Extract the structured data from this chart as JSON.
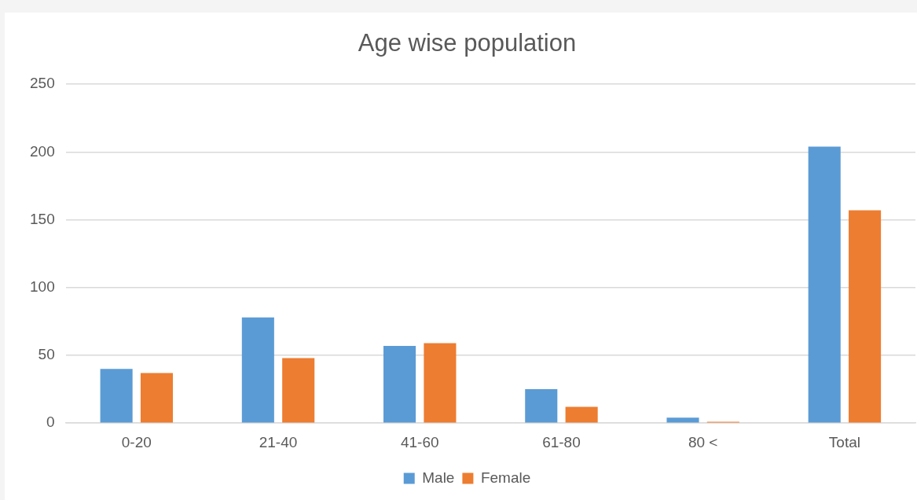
{
  "chart_data": {
    "type": "bar",
    "title": "Age wise population",
    "categories": [
      "0-20",
      "21-40",
      "41-60",
      "61-80",
      "80 <",
      "Total"
    ],
    "series": [
      {
        "name": "Male",
        "color": "#5b9bd5",
        "values": [
          40,
          78,
          57,
          25,
          4,
          204
        ]
      },
      {
        "name": "Female",
        "color": "#ed7d31",
        "values": [
          37,
          48,
          59,
          12,
          1,
          157
        ]
      }
    ],
    "ylim": [
      0,
      250
    ],
    "yticks": [
      0,
      50,
      100,
      150,
      200,
      250
    ],
    "grid": "y",
    "legend": "bottom"
  }
}
